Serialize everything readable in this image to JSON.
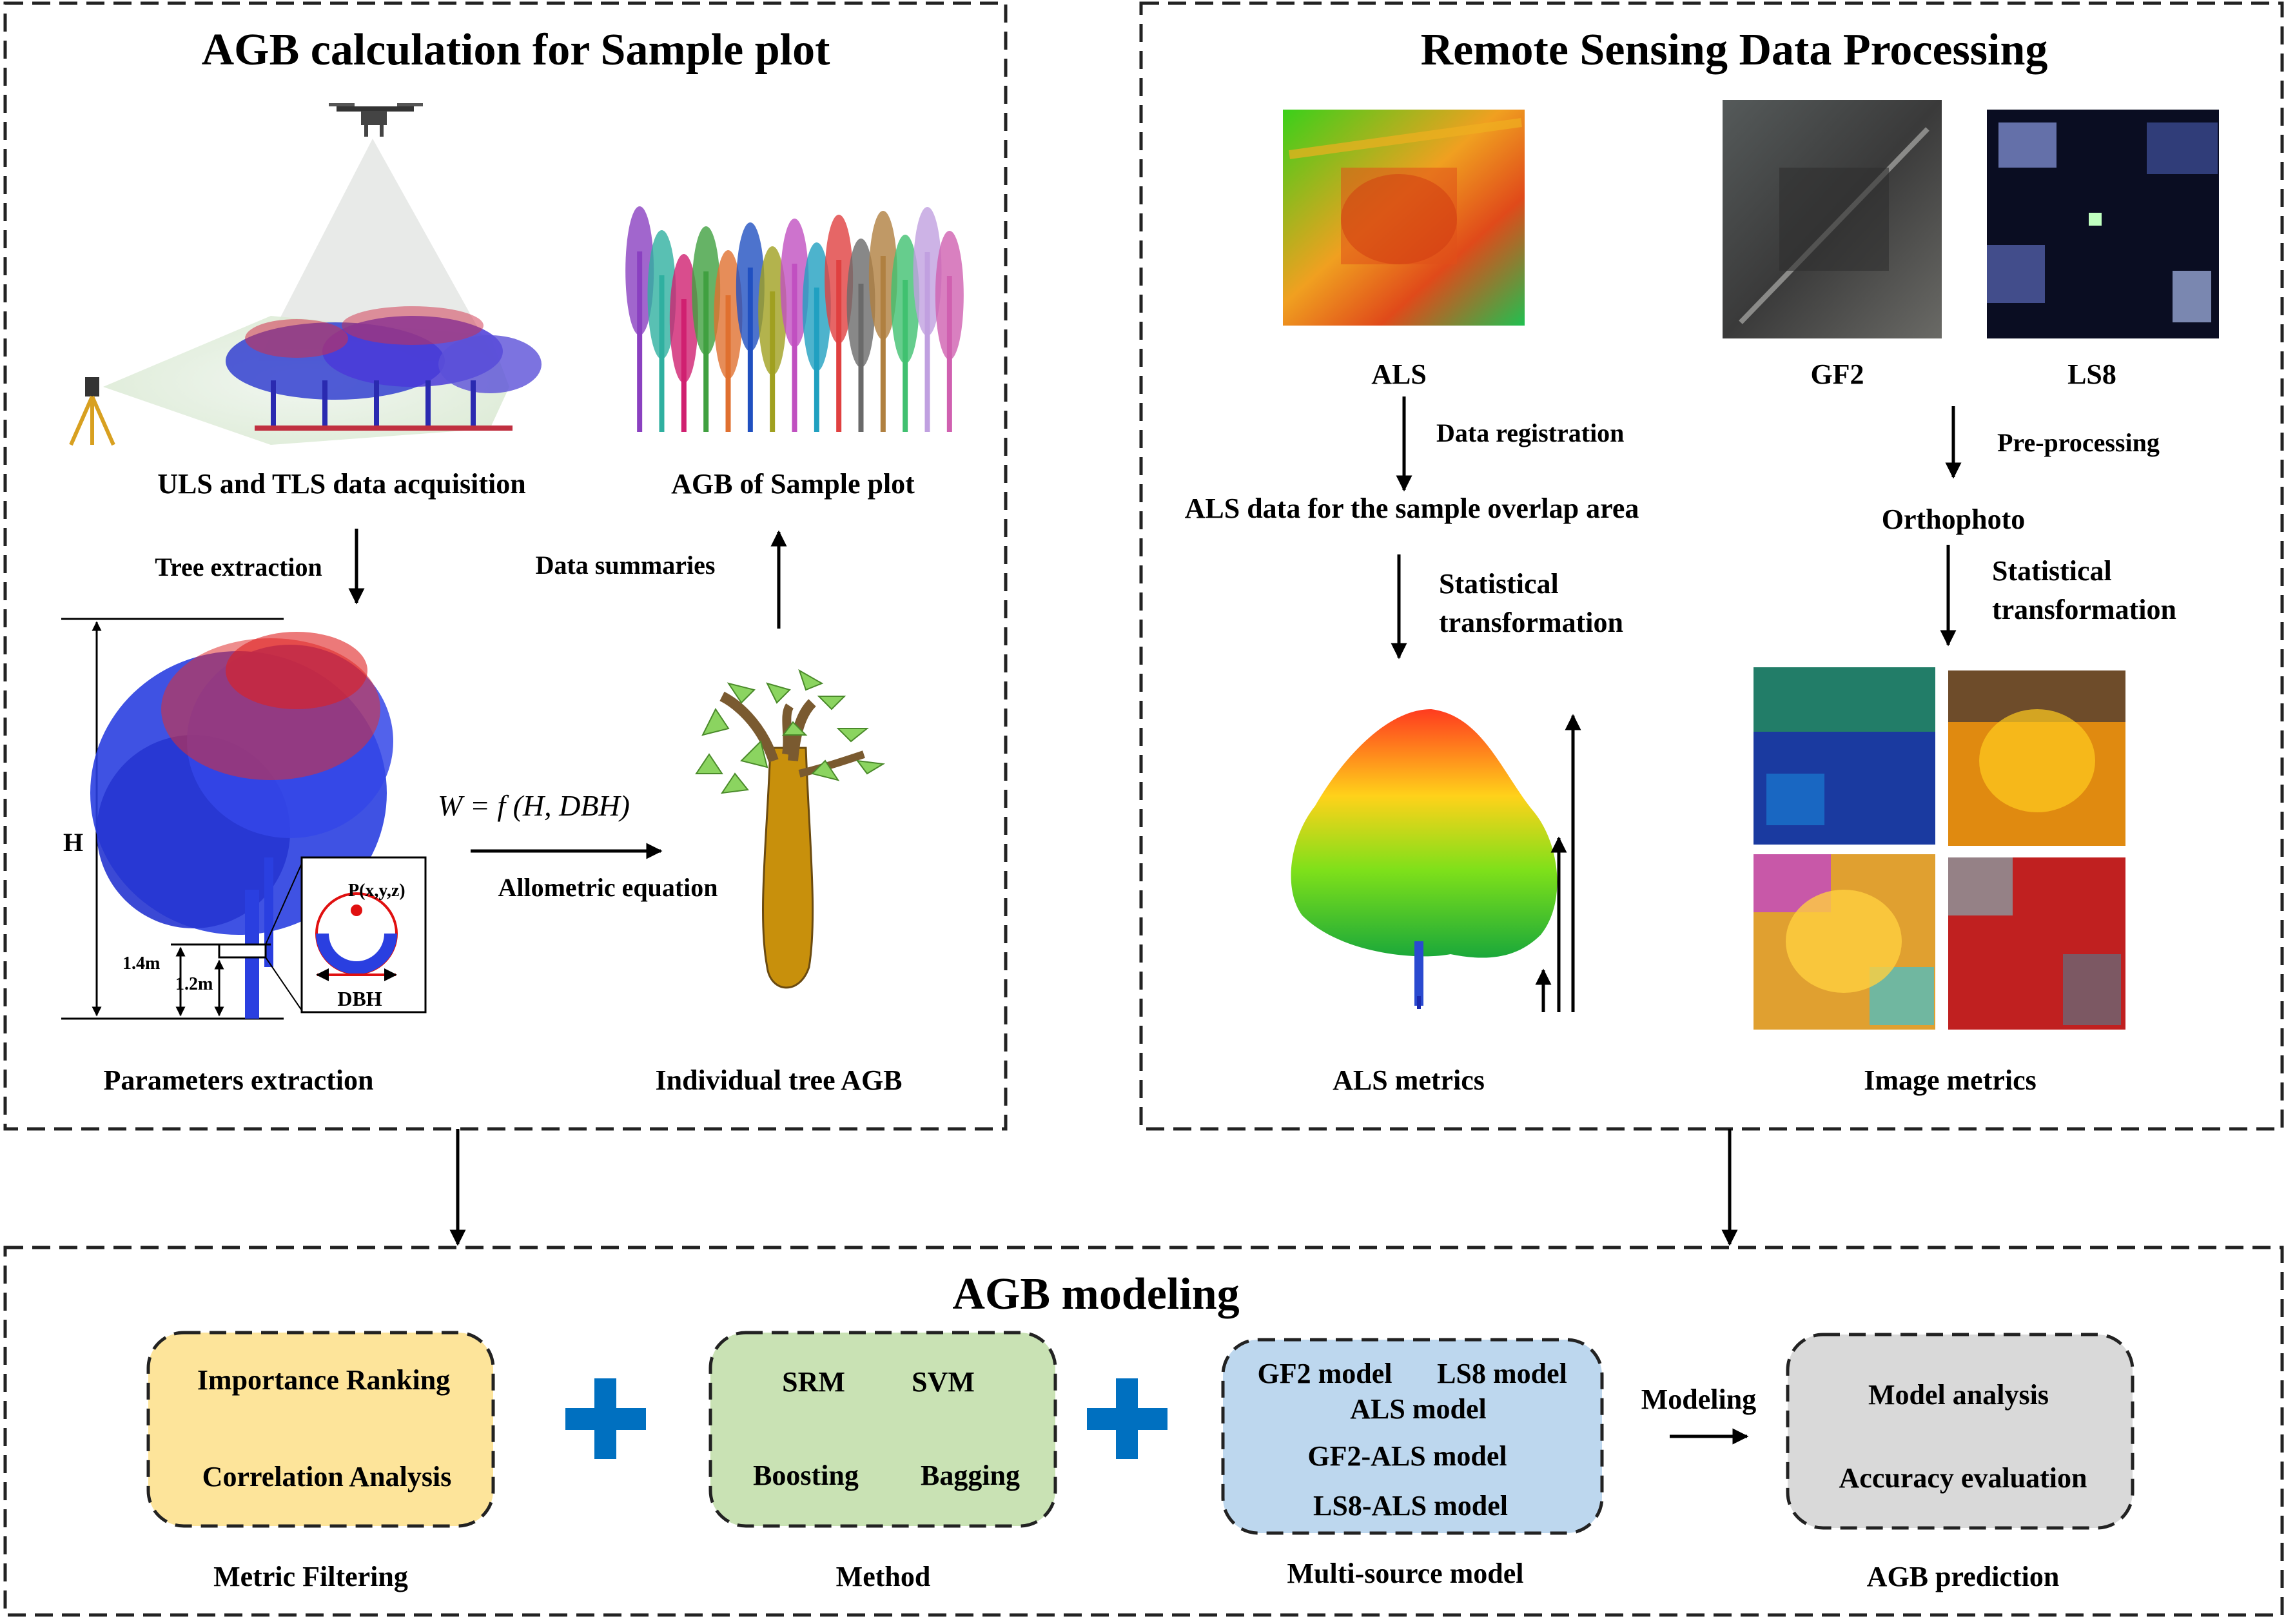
{
  "colors": {
    "box_filter": "#fde49a",
    "box_method": "#c9e2b4",
    "box_model": "#bdd7ee",
    "box_pred": "#d9d9d9",
    "plus": "#0070c0",
    "frame": "#222222"
  },
  "sample_plot": {
    "title": "AGB calculation for Sample plot",
    "uls_tls": "ULS and TLS data acquisition",
    "agb_sample": "AGB of Sample plot",
    "tree_extraction": "Tree extraction",
    "data_summaries": "Data summaries",
    "equation": "W = f (H, DBH)",
    "allometric": "Allometric equation",
    "parameters": "Parameters extraction",
    "individual": "Individual tree AGB",
    "h_label": "H",
    "h14": "1.4m",
    "h12": "1.2m",
    "dbh": "DBH",
    "point": "P(x,y,z)"
  },
  "remote_sensing": {
    "title": "Remote Sensing Data Processing",
    "als": "ALS",
    "gf2": "GF2",
    "ls8": "LS8",
    "data_registration": "Data registration",
    "pre_processing": "Pre-processing",
    "als_overlap": "ALS data for the sample overlap area",
    "orthophoto": "Orthophoto",
    "stat1": "Statistical",
    "stat2": "transformation",
    "als_metrics": "ALS metrics",
    "image_metrics": "Image metrics"
  },
  "modeling": {
    "title": "AGB modeling",
    "filter_items": [
      "Importance Ranking",
      "Correlation Analysis"
    ],
    "filter_caption": "Metric Filtering",
    "method_items": [
      "SRM",
      "SVM",
      "Boosting",
      "Bagging"
    ],
    "method_caption": "Method",
    "model_items": [
      "GF2 model",
      "LS8 model",
      "ALS model",
      "GF2-ALS model",
      "LS8-ALS model"
    ],
    "model_caption": "Multi-source model",
    "modeling_label": "Modeling",
    "pred_items": [
      "Model analysis",
      "Accuracy evaluation"
    ],
    "pred_caption": "AGB prediction"
  }
}
